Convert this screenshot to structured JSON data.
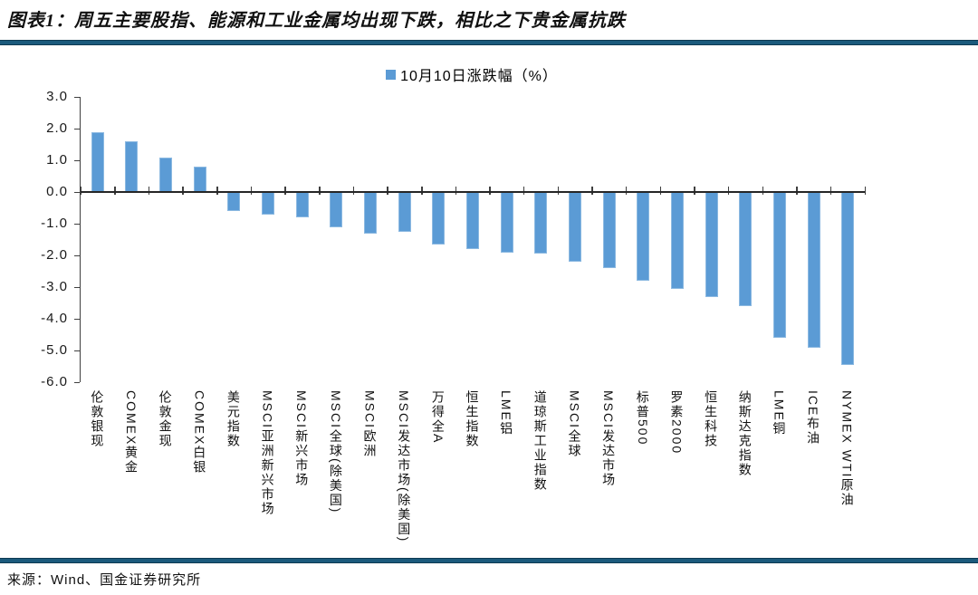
{
  "header": {
    "title": "图表1：周五主要股指、能源和工业金属均出现下跌，相比之下贵金属抗跌"
  },
  "footer": {
    "source": "来源：Wind、国金证券研究所"
  },
  "colors": {
    "bar": "#5B9BD5",
    "divider": "#1B5A7C",
    "axis": "#3F3F3F",
    "text": "#000000"
  },
  "chart_data": {
    "type": "bar",
    "title": "",
    "legend": [
      {
        "label": "10月10日涨跌幅（%）",
        "color": "#5B9BD5"
      }
    ],
    "legend_position": "top-center",
    "grid": false,
    "xlabel": "",
    "ylabel": "",
    "ylim": [
      -6.0,
      3.0
    ],
    "ytick_interval": 1.0,
    "ytick_labels": [
      "3.0",
      "2.0",
      "1.0",
      "0.0",
      "-1.0",
      "-2.0",
      "-3.0",
      "-4.0",
      "-5.0",
      "-6.0"
    ],
    "categories": [
      "伦敦银现",
      "COMEX黄金",
      "伦敦金现",
      "COMEX白银",
      "美元指数",
      "MSCI亚洲新兴市场",
      "MSCI新兴市场",
      "MSCI全球(除美国)",
      "MSCI欧洲",
      "MSCI发达市场(除美国)",
      "万得全A",
      "恒生指数",
      "LME铝",
      "道琼斯工业指数",
      "MSCI全球",
      "MSCI发达市场",
      "标普500",
      "罗素2000",
      "恒生科技",
      "纳斯达克指数",
      "LME铜",
      "ICE布油",
      "NYMEX WTI原油"
    ],
    "series": [
      {
        "name": "10月10日涨跌幅（%）",
        "values": [
          1.9,
          1.6,
          1.1,
          0.8,
          -0.6,
          -0.7,
          -0.8,
          -1.1,
          -1.3,
          -1.25,
          -1.65,
          -1.8,
          -1.9,
          -1.95,
          -2.2,
          -2.4,
          -2.8,
          -3.05,
          -3.3,
          -3.6,
          -4.6,
          -4.9,
          -5.45
        ]
      }
    ]
  }
}
